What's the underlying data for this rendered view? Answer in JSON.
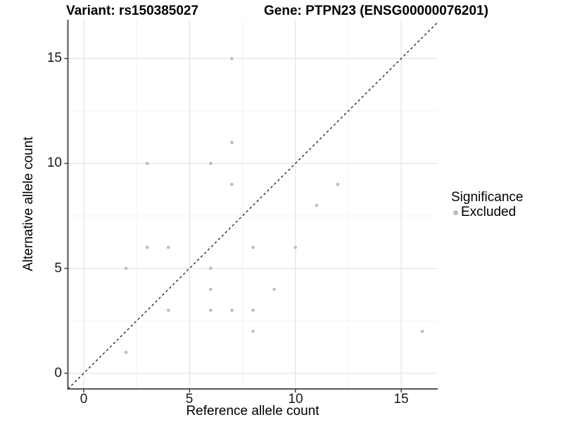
{
  "title": {
    "variant": "Variant: rs150385027",
    "gene": "Gene: PTPN23 (ENSG00000076201)"
  },
  "chart_data": {
    "type": "scatter",
    "title": "Variant: rs150385027  |  Gene: PTPN23 (ENSG00000076201)",
    "xlabel": "Reference allele count",
    "ylabel": "Alternative allele count",
    "x_ticks": [
      0,
      5,
      10,
      15
    ],
    "y_ticks": [
      0,
      5,
      10,
      15
    ],
    "x_minor_ticks": [
      2.5,
      7.5,
      12.5
    ],
    "y_minor_ticks": [
      2.5,
      7.5,
      12.5
    ],
    "xlim": [
      -0.75,
      16.75
    ],
    "ylim": [
      -0.75,
      16.85
    ],
    "grid": "major+minor",
    "legend_position": "right",
    "identity_line": {
      "shown": true,
      "style": "dashed",
      "color": "#1a1a1a"
    },
    "series": [
      {
        "name": "Excluded",
        "color": "#bcbcbc",
        "points": [
          [
            2,
            1
          ],
          [
            2,
            5
          ],
          [
            3,
            6
          ],
          [
            3,
            10
          ],
          [
            4,
            3
          ],
          [
            4,
            6
          ],
          [
            6,
            3
          ],
          [
            6,
            4
          ],
          [
            6,
            5
          ],
          [
            6,
            10
          ],
          [
            7,
            3
          ],
          [
            7,
            9
          ],
          [
            7,
            11
          ],
          [
            7,
            15
          ],
          [
            8,
            2
          ],
          [
            8,
            3
          ],
          [
            8,
            6
          ],
          [
            9,
            4
          ],
          [
            10,
            6
          ],
          [
            11,
            8
          ],
          [
            12,
            9
          ],
          [
            16,
            2
          ]
        ]
      }
    ]
  },
  "legend": {
    "title": "Significance",
    "items": [
      {
        "label": "Excluded",
        "color": "#bcbcbc"
      }
    ]
  },
  "colors": {
    "point": "#bcbcbc",
    "grid_major": "#e4e4e4",
    "grid_minor": "#f0f0f0",
    "axis_line": "#404040",
    "text": "#000000"
  }
}
